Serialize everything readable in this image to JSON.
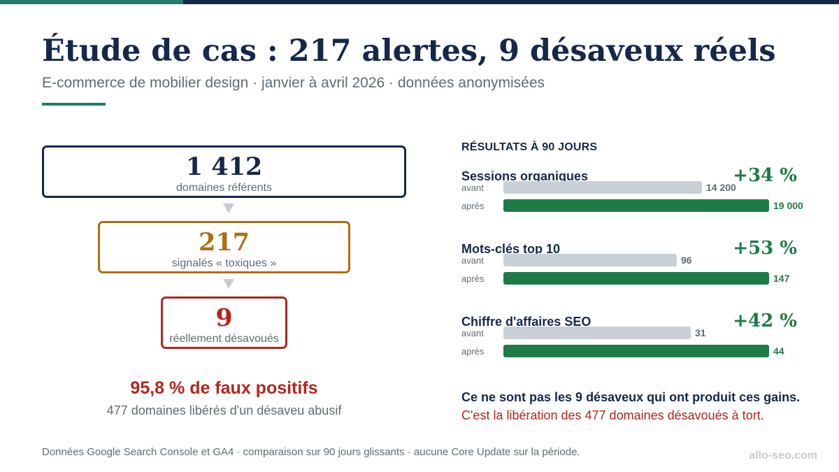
{
  "colors": {
    "navy": "#14284b",
    "teal": "#1e7b6e",
    "amber": "#b06e12",
    "red": "#b3261e",
    "green": "#1e7b46",
    "gray_bar": "#c9d0d7",
    "muted_text": "#5f6b76",
    "value_before": "#5f6b76"
  },
  "header": {
    "title": "Étude de cas : 217 alertes, 9 désaveux réels",
    "subtitle": "E-commerce de mobilier design · janvier à avril 2026 · données anonymisées"
  },
  "funnel": [
    {
      "value": "1 412",
      "label": "domaines référents",
      "color": "#14284b"
    },
    {
      "value": "217",
      "label": "signalés « toxiques »",
      "color": "#b06e12"
    },
    {
      "value": "9",
      "label": "réellement désavoués",
      "color": "#b3261e"
    }
  ],
  "false_positives": {
    "headline": "95,8 % de faux positifs",
    "subtext": "477 domaines libérés d'un désaveu abusif"
  },
  "results": {
    "heading": "RÉSULTATS À 90 JOURS",
    "before_label": "avant",
    "after_label": "après",
    "metrics": [
      {
        "label": "Sessions organiques",
        "change": "+34 %",
        "before": 14200,
        "after": 19000,
        "before_text": "14 200",
        "after_text": "19 000"
      },
      {
        "label": "Mots-clés top 10",
        "change": "+53 %",
        "before": 96,
        "after": 147,
        "before_text": "96",
        "after_text": "147"
      },
      {
        "label": "Chiffre d'affaires SEO",
        "change": "+42 %",
        "before": 31,
        "after": 44,
        "before_text": "31",
        "after_text": "44"
      }
    ]
  },
  "conclusion": {
    "line1": "Ce ne sont pas les 9 désaveux qui ont produit ces gains.",
    "line2": "C'est la libération des 477 domaines désavoués à tort."
  },
  "footer": {
    "note": "Données Google Search Console et GA4 · comparaison sur 90 jours glissants · aucune Core Update sur la période.",
    "brand": "allo-seo.com"
  }
}
